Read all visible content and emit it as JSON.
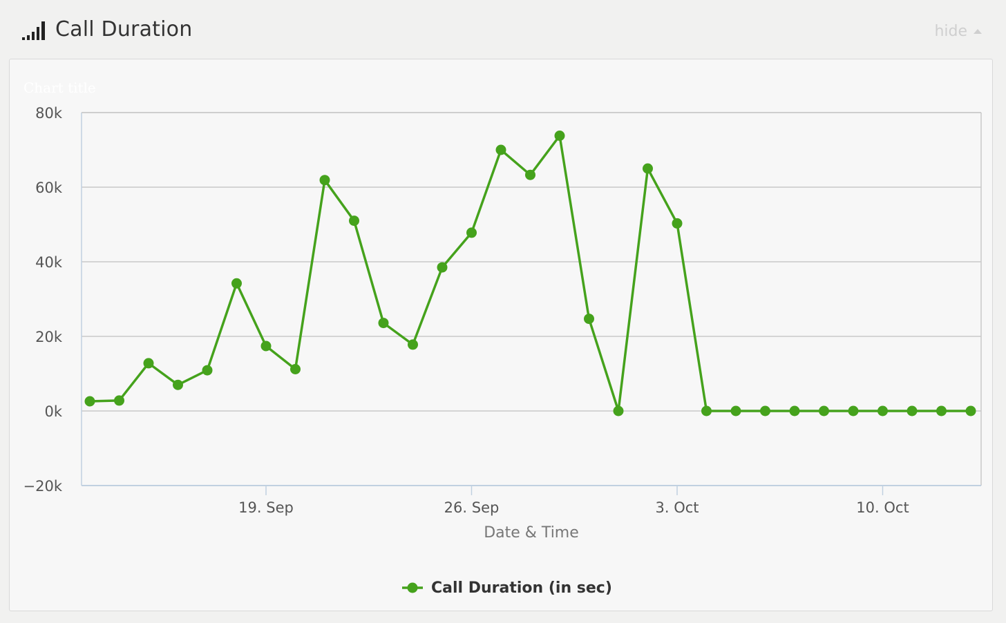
{
  "header": {
    "title": "Call Duration",
    "icon": "signal-bars-icon",
    "hide_label": "hide",
    "hide_icon": "caret-up-icon"
  },
  "chart_data": {
    "type": "line",
    "title": "Chart title",
    "xlabel": "Date & Time",
    "ylabel": "",
    "ylim": [
      -20000,
      80000
    ],
    "y_ticks": [
      -20000,
      0,
      20000,
      40000,
      60000,
      80000
    ],
    "y_tick_labels": [
      "−20k",
      "0k",
      "20k",
      "40k",
      "60k",
      "80k"
    ],
    "x_tick_labels": [
      "19. Sep",
      "26. Sep",
      "3. Oct",
      "10. Oct"
    ],
    "x_tick_dates": [
      "2013-09-19",
      "2013-09-26",
      "2013-10-03",
      "2013-10-10"
    ],
    "grid": true,
    "legend_position": "bottom-center",
    "series": [
      {
        "name": "Call Duration (in sec)",
        "color": "#45a21c",
        "points": [
          {
            "x": "2013-09-13",
            "y": 2600
          },
          {
            "x": "2013-09-14",
            "y": 2800
          },
          {
            "x": "2013-09-15",
            "y": 12800
          },
          {
            "x": "2013-09-16",
            "y": 7000
          },
          {
            "x": "2013-09-17",
            "y": 10900
          },
          {
            "x": "2013-09-18",
            "y": 34200
          },
          {
            "x": "2013-09-19",
            "y": 17400
          },
          {
            "x": "2013-09-20",
            "y": 11200
          },
          {
            "x": "2013-09-21",
            "y": 61900
          },
          {
            "x": "2013-09-22",
            "y": 51000
          },
          {
            "x": "2013-09-23",
            "y": 23600
          },
          {
            "x": "2013-09-24",
            "y": 17800
          },
          {
            "x": "2013-09-25",
            "y": 38500
          },
          {
            "x": "2013-09-26",
            "y": 47800
          },
          {
            "x": "2013-09-27",
            "y": 70000
          },
          {
            "x": "2013-09-28",
            "y": 63300
          },
          {
            "x": "2013-09-29",
            "y": 73800
          },
          {
            "x": "2013-09-30",
            "y": 24700
          },
          {
            "x": "2013-10-01",
            "y": 0
          },
          {
            "x": "2013-10-02",
            "y": 65000
          },
          {
            "x": "2013-10-03",
            "y": 50300
          },
          {
            "x": "2013-10-04",
            "y": 0
          },
          {
            "x": "2013-10-05",
            "y": 0
          },
          {
            "x": "2013-10-06",
            "y": 0
          },
          {
            "x": "2013-10-07",
            "y": 0
          },
          {
            "x": "2013-10-08",
            "y": 0
          },
          {
            "x": "2013-10-09",
            "y": 0
          },
          {
            "x": "2013-10-10",
            "y": 0
          },
          {
            "x": "2013-10-11",
            "y": 0
          },
          {
            "x": "2013-10-12",
            "y": 0
          },
          {
            "x": "2013-10-13",
            "y": 0
          }
        ]
      }
    ]
  },
  "colors": {
    "series": "#45a21c",
    "grid": "#c8c8c8",
    "axis": "#c0d0e0",
    "background": "#f7f7f7",
    "page_background": "#f1f1f0"
  }
}
